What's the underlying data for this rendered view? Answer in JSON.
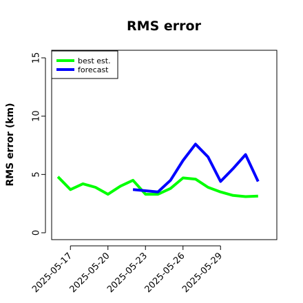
{
  "chart_data": {
    "type": "line",
    "title": "RMS error",
    "xlabel": "",
    "ylabel": "RMS error (km)",
    "ylim": [
      0,
      15
    ],
    "yticks": [
      0,
      5,
      10,
      15
    ],
    "x_dates": [
      "2025-05-16",
      "2025-05-17",
      "2025-05-18",
      "2025-05-19",
      "2025-05-20",
      "2025-05-21",
      "2025-05-22",
      "2025-05-23",
      "2025-05-24",
      "2025-05-25",
      "2025-05-26",
      "2025-05-27",
      "2025-05-28",
      "2025-05-29",
      "2025-05-30",
      "2025-05-31",
      "2025-06-01"
    ],
    "xlim": [
      "2025-05-15T12:00",
      "2025-06-02T12:00"
    ],
    "xtick_labels": [
      "2025-05-17",
      "2025-05-20",
      "2025-05-23",
      "2025-05-26",
      "2025-05-29"
    ],
    "grid": false,
    "legend_position": "top-left",
    "series": [
      {
        "name": "best est.",
        "color": "#00ff00",
        "x": [
          "2025-05-16",
          "2025-05-17",
          "2025-05-18",
          "2025-05-19",
          "2025-05-20",
          "2025-05-21",
          "2025-05-22",
          "2025-05-23",
          "2025-05-24",
          "2025-05-25",
          "2025-05-26",
          "2025-05-27",
          "2025-05-28",
          "2025-05-29",
          "2025-05-30",
          "2025-05-31",
          "2025-06-01"
        ],
        "values": [
          4.8,
          3.7,
          4.2,
          3.9,
          3.3,
          4.0,
          4.5,
          3.3,
          3.3,
          3.8,
          4.7,
          4.6,
          3.9,
          3.5,
          3.2,
          3.1,
          3.15
        ]
      },
      {
        "name": "forecast",
        "color": "#0000ff",
        "x": [
          "2025-05-22",
          "2025-05-24",
          "2025-05-25",
          "2025-05-26",
          "2025-05-27",
          "2025-05-28",
          "2025-05-29",
          "2025-05-30",
          "2025-05-31",
          "2025-06-01"
        ],
        "values": [
          3.7,
          3.5,
          4.5,
          6.2,
          7.6,
          6.5,
          4.4,
          5.5,
          6.7,
          4.4
        ]
      }
    ]
  }
}
